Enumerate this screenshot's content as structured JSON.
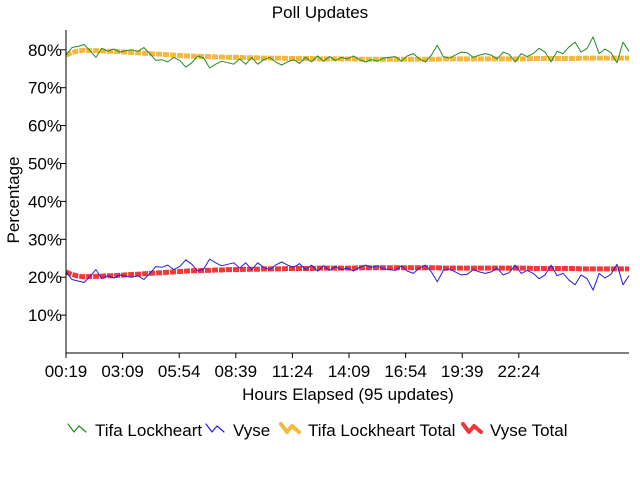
{
  "chart_data": {
    "type": "line",
    "title": "Poll Updates",
    "xlabel": "Hours Elapsed (95 updates)",
    "ylabel": "Percentage",
    "x_ticks": [
      "00:19",
      "03:09",
      "05:54",
      "08:39",
      "11:24",
      "14:09",
      "16:54",
      "19:39",
      "22:24"
    ],
    "y_ticks": [
      "10%",
      "20%",
      "30%",
      "40%",
      "50%",
      "60%",
      "70%",
      "80%"
    ],
    "ylim": [
      0,
      85
    ],
    "num_updates": 95,
    "legend_position": "bottom",
    "grid": false,
    "series": [
      {
        "name": "Tifa Lockheart",
        "color": "#228b22",
        "style": "thin",
        "values": [
          78.6,
          80.6,
          80.9,
          81.4,
          79.8,
          78.0,
          80.4,
          79.6,
          80.2,
          79.4,
          79.8,
          80.0,
          79.6,
          80.6,
          79.0,
          77.2,
          77.4,
          76.8,
          78.0,
          77.2,
          75.4,
          76.6,
          78.4,
          77.8,
          75.2,
          76.2,
          77.0,
          76.6,
          76.2,
          77.6,
          76.2,
          78.0,
          76.2,
          77.4,
          78.0,
          76.8,
          76.0,
          76.8,
          77.4,
          76.4,
          78.0,
          76.8,
          78.4,
          77.0,
          78.2,
          77.2,
          78.0,
          77.6,
          78.4,
          77.4,
          76.8,
          77.4,
          77.0,
          77.8,
          78.0,
          78.2,
          77.0,
          78.4,
          79.0,
          77.6,
          76.8,
          78.6,
          81.2,
          78.2,
          77.8,
          78.6,
          79.4,
          79.2,
          78.0,
          78.6,
          79.0,
          78.6,
          77.6,
          79.4,
          78.8,
          76.8,
          79.0,
          78.2,
          79.0,
          80.4,
          79.4,
          76.8,
          79.6,
          79.0,
          80.8,
          82.0,
          79.4,
          80.4,
          83.4,
          79.0,
          80.2,
          79.2,
          76.6,
          82.0,
          79.6
        ]
      },
      {
        "name": "Vyse",
        "color": "#2020e0",
        "style": "thin",
        "values": [
          21.4,
          19.4,
          19.0,
          18.6,
          20.2,
          22.0,
          19.6,
          20.4,
          19.8,
          20.6,
          20.2,
          20.0,
          20.4,
          19.4,
          21.0,
          22.8,
          22.6,
          23.2,
          22.0,
          22.8,
          24.6,
          23.4,
          21.6,
          22.2,
          24.8,
          23.8,
          23.0,
          23.4,
          23.8,
          22.4,
          23.8,
          22.0,
          23.8,
          22.6,
          22.0,
          23.2,
          24.0,
          23.2,
          22.6,
          23.6,
          22.0,
          23.2,
          21.6,
          23.0,
          21.8,
          22.8,
          22.0,
          22.4,
          21.6,
          22.6,
          23.2,
          22.6,
          23.0,
          22.2,
          22.0,
          21.8,
          23.0,
          21.6,
          21.0,
          22.4,
          23.2,
          21.4,
          18.8,
          21.8,
          22.2,
          21.4,
          20.6,
          20.8,
          22.0,
          21.4,
          21.0,
          21.4,
          22.4,
          20.6,
          21.2,
          23.2,
          21.0,
          21.8,
          21.0,
          19.6,
          20.6,
          23.2,
          20.4,
          21.0,
          19.2,
          18.0,
          20.6,
          19.6,
          16.6,
          21.0,
          19.8,
          20.8,
          23.4,
          18.0,
          20.4
        ]
      },
      {
        "name": "Tifa Lockheart Total",
        "color": "#f5b83d",
        "style": "thick",
        "values": [
          78.6,
          79.3,
          79.7,
          79.9,
          79.8,
          79.8,
          79.7,
          79.6,
          79.6,
          79.5,
          79.4,
          79.3,
          79.2,
          79.1,
          79.0,
          78.9,
          78.8,
          78.7,
          78.6,
          78.5,
          78.4,
          78.3,
          78.3,
          78.2,
          78.2,
          78.1,
          78.1,
          78.0,
          78.0,
          78.0,
          77.9,
          77.9,
          77.9,
          77.8,
          77.8,
          77.8,
          77.8,
          77.7,
          77.7,
          77.7,
          77.7,
          77.7,
          77.6,
          77.6,
          77.6,
          77.6,
          77.6,
          77.6,
          77.6,
          77.5,
          77.5,
          77.5,
          77.5,
          77.5,
          77.5,
          77.5,
          77.5,
          77.5,
          77.5,
          77.5,
          77.5,
          77.5,
          77.5,
          77.6,
          77.6,
          77.6,
          77.6,
          77.6,
          77.6,
          77.6,
          77.6,
          77.6,
          77.6,
          77.6,
          77.6,
          77.6,
          77.6,
          77.6,
          77.7,
          77.7,
          77.7,
          77.7,
          77.7,
          77.7,
          77.7,
          77.7,
          77.8,
          77.8,
          77.8,
          77.8,
          77.8,
          77.8,
          77.8,
          77.8,
          77.8
        ]
      },
      {
        "name": "Vyse Total",
        "color": "#f03838",
        "style": "thick",
        "values": [
          21.4,
          20.7,
          20.3,
          20.1,
          20.2,
          20.2,
          20.3,
          20.4,
          20.4,
          20.5,
          20.6,
          20.7,
          20.8,
          20.9,
          21.0,
          21.1,
          21.2,
          21.3,
          21.4,
          21.5,
          21.6,
          21.7,
          21.7,
          21.8,
          21.8,
          21.9,
          21.9,
          22.0,
          22.0,
          22.0,
          22.1,
          22.1,
          22.1,
          22.2,
          22.2,
          22.2,
          22.2,
          22.3,
          22.3,
          22.3,
          22.3,
          22.3,
          22.4,
          22.4,
          22.4,
          22.4,
          22.4,
          22.4,
          22.4,
          22.5,
          22.5,
          22.5,
          22.5,
          22.5,
          22.5,
          22.5,
          22.5,
          22.5,
          22.5,
          22.5,
          22.5,
          22.5,
          22.5,
          22.4,
          22.4,
          22.4,
          22.4,
          22.4,
          22.4,
          22.4,
          22.4,
          22.4,
          22.4,
          22.4,
          22.4,
          22.4,
          22.4,
          22.4,
          22.3,
          22.3,
          22.3,
          22.3,
          22.3,
          22.3,
          22.3,
          22.3,
          22.2,
          22.2,
          22.2,
          22.2,
          22.2,
          22.2,
          22.2,
          22.2,
          22.2
        ]
      }
    ]
  }
}
